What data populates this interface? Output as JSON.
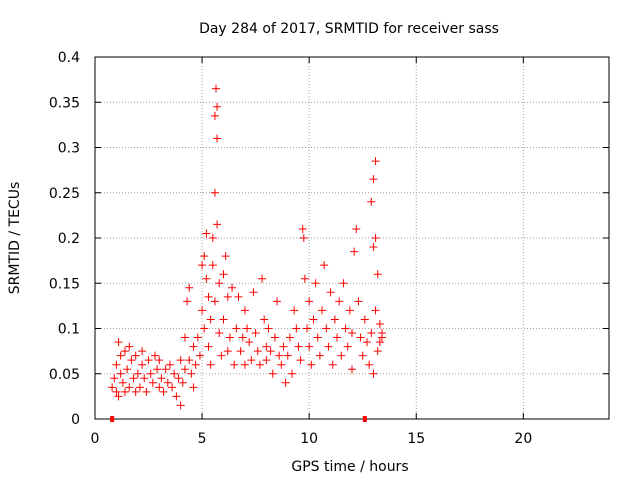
{
  "chart_data": {
    "type": "scatter",
    "title": "Day 284 of 2017, SRMTID for receiver sass",
    "xlabel": "GPS time / hours",
    "ylabel": "SRMTID / TECUs",
    "xlim": [
      0,
      24
    ],
    "ylim": [
      0,
      0.4
    ],
    "xticks": [
      0,
      5,
      10,
      15,
      20
    ],
    "xtick_labels": [
      "0",
      "5",
      "10",
      "15",
      "20"
    ],
    "yticks": [
      0,
      0.05,
      0.1,
      0.15,
      0.2,
      0.25,
      0.3,
      0.35,
      0.4
    ],
    "ytick_labels": [
      "0",
      "0.05",
      "0.1",
      "0.15",
      "0.2",
      "0.25",
      "0.3",
      "0.35",
      "0.4"
    ],
    "grid": true,
    "marker": "+",
    "series": [
      {
        "name": "SRMTID",
        "color": "#ff0000",
        "points": [
          [
            0.8,
            0.035
          ],
          [
            0.9,
            0.045
          ],
          [
            1.0,
            0.03
          ],
          [
            1.0,
            0.06
          ],
          [
            1.1,
            0.085
          ],
          [
            1.1,
            0.025
          ],
          [
            1.2,
            0.05
          ],
          [
            1.2,
            0.07
          ],
          [
            1.3,
            0.04
          ],
          [
            1.4,
            0.03
          ],
          [
            1.4,
            0.075
          ],
          [
            1.5,
            0.055
          ],
          [
            1.6,
            0.08
          ],
          [
            1.6,
            0.035
          ],
          [
            1.7,
            0.065
          ],
          [
            1.8,
            0.045
          ],
          [
            1.9,
            0.03
          ],
          [
            1.9,
            0.07
          ],
          [
            2.0,
            0.05
          ],
          [
            2.1,
            0.035
          ],
          [
            2.2,
            0.06
          ],
          [
            2.2,
            0.075
          ],
          [
            2.3,
            0.045
          ],
          [
            2.4,
            0.03
          ],
          [
            2.5,
            0.065
          ],
          [
            2.6,
            0.05
          ],
          [
            2.7,
            0.04
          ],
          [
            2.8,
            0.07
          ],
          [
            2.9,
            0.055
          ],
          [
            3.0,
            0.035
          ],
          [
            3.0,
            0.065
          ],
          [
            3.1,
            0.045
          ],
          [
            3.2,
            0.03
          ],
          [
            3.3,
            0.055
          ],
          [
            3.4,
            0.04
          ],
          [
            3.5,
            0.06
          ],
          [
            3.6,
            0.035
          ],
          [
            3.7,
            0.05
          ],
          [
            3.8,
            0.025
          ],
          [
            3.9,
            0.045
          ],
          [
            4.0,
            0.015
          ],
          [
            4.0,
            0.065
          ],
          [
            4.1,
            0.04
          ],
          [
            4.2,
            0.09
          ],
          [
            4.2,
            0.055
          ],
          [
            4.3,
            0.13
          ],
          [
            4.4,
            0.065
          ],
          [
            4.4,
            0.145
          ],
          [
            4.5,
            0.05
          ],
          [
            4.6,
            0.08
          ],
          [
            4.6,
            0.035
          ],
          [
            4.7,
            0.06
          ],
          [
            4.8,
            0.09
          ],
          [
            4.9,
            0.07
          ],
          [
            5.0,
            0.12
          ],
          [
            5.0,
            0.17
          ],
          [
            5.1,
            0.18
          ],
          [
            5.1,
            0.1
          ],
          [
            5.2,
            0.205
          ],
          [
            5.2,
            0.155
          ],
          [
            5.3,
            0.08
          ],
          [
            5.3,
            0.135
          ],
          [
            5.4,
            0.11
          ],
          [
            5.4,
            0.06
          ],
          [
            5.5,
            0.17
          ],
          [
            5.5,
            0.2
          ],
          [
            5.6,
            0.335
          ],
          [
            5.6,
            0.25
          ],
          [
            5.6,
            0.13
          ],
          [
            5.65,
            0.365
          ],
          [
            5.7,
            0.345
          ],
          [
            5.7,
            0.31
          ],
          [
            5.7,
            0.215
          ],
          [
            5.8,
            0.15
          ],
          [
            5.8,
            0.095
          ],
          [
            5.9,
            0.07
          ],
          [
            6.0,
            0.11
          ],
          [
            6.0,
            0.16
          ],
          [
            6.1,
            0.18
          ],
          [
            6.2,
            0.135
          ],
          [
            6.2,
            0.075
          ],
          [
            6.3,
            0.09
          ],
          [
            6.4,
            0.145
          ],
          [
            6.5,
            0.06
          ],
          [
            6.6,
            0.1
          ],
          [
            6.7,
            0.135
          ],
          [
            6.8,
            0.075
          ],
          [
            6.9,
            0.09
          ],
          [
            7.0,
            0.12
          ],
          [
            7.0,
            0.06
          ],
          [
            7.1,
            0.1
          ],
          [
            7.2,
            0.085
          ],
          [
            7.3,
            0.065
          ],
          [
            7.4,
            0.14
          ],
          [
            7.5,
            0.095
          ],
          [
            7.6,
            0.075
          ],
          [
            7.7,
            0.06
          ],
          [
            7.8,
            0.155
          ],
          [
            7.9,
            0.11
          ],
          [
            8.0,
            0.08
          ],
          [
            8.0,
            0.065
          ],
          [
            8.1,
            0.1
          ],
          [
            8.2,
            0.075
          ],
          [
            8.3,
            0.05
          ],
          [
            8.4,
            0.09
          ],
          [
            8.5,
            0.13
          ],
          [
            8.6,
            0.07
          ],
          [
            8.7,
            0.06
          ],
          [
            8.8,
            0.08
          ],
          [
            8.9,
            0.04
          ],
          [
            9.0,
            0.07
          ],
          [
            9.1,
            0.09
          ],
          [
            9.2,
            0.05
          ],
          [
            9.3,
            0.12
          ],
          [
            9.4,
            0.1
          ],
          [
            9.5,
            0.08
          ],
          [
            9.6,
            0.065
          ],
          [
            9.7,
            0.21
          ],
          [
            9.75,
            0.2
          ],
          [
            9.8,
            0.155
          ],
          [
            9.9,
            0.1
          ],
          [
            10.0,
            0.08
          ],
          [
            10.0,
            0.13
          ],
          [
            10.1,
            0.06
          ],
          [
            10.2,
            0.11
          ],
          [
            10.3,
            0.15
          ],
          [
            10.4,
            0.09
          ],
          [
            10.5,
            0.07
          ],
          [
            10.6,
            0.12
          ],
          [
            10.7,
            0.17
          ],
          [
            10.8,
            0.1
          ],
          [
            10.9,
            0.08
          ],
          [
            11.0,
            0.14
          ],
          [
            11.1,
            0.06
          ],
          [
            11.2,
            0.11
          ],
          [
            11.3,
            0.09
          ],
          [
            11.4,
            0.13
          ],
          [
            11.5,
            0.07
          ],
          [
            11.6,
            0.15
          ],
          [
            11.7,
            0.1
          ],
          [
            11.8,
            0.08
          ],
          [
            11.9,
            0.12
          ],
          [
            12.0,
            0.095
          ],
          [
            12.0,
            0.055
          ],
          [
            12.1,
            0.185
          ],
          [
            12.2,
            0.21
          ],
          [
            12.3,
            0.13
          ],
          [
            12.4,
            0.09
          ],
          [
            12.5,
            0.07
          ],
          [
            12.6,
            0.11
          ],
          [
            12.7,
            0.085
          ],
          [
            12.8,
            0.06
          ],
          [
            12.9,
            0.24
          ],
          [
            12.9,
            0.095
          ],
          [
            13.0,
            0.265
          ],
          [
            13.0,
            0.19
          ],
          [
            13.0,
            0.05
          ],
          [
            13.1,
            0.285
          ],
          [
            13.1,
            0.2
          ],
          [
            13.1,
            0.12
          ],
          [
            13.2,
            0.16
          ],
          [
            13.2,
            0.075
          ],
          [
            13.3,
            0.105
          ],
          [
            13.3,
            0.085
          ],
          [
            13.4,
            0.095
          ],
          [
            13.4,
            0.09
          ]
        ]
      }
    ],
    "gap_markers": [
      [
        0.8,
        0.0
      ],
      [
        12.6,
        0.0
      ]
    ]
  }
}
